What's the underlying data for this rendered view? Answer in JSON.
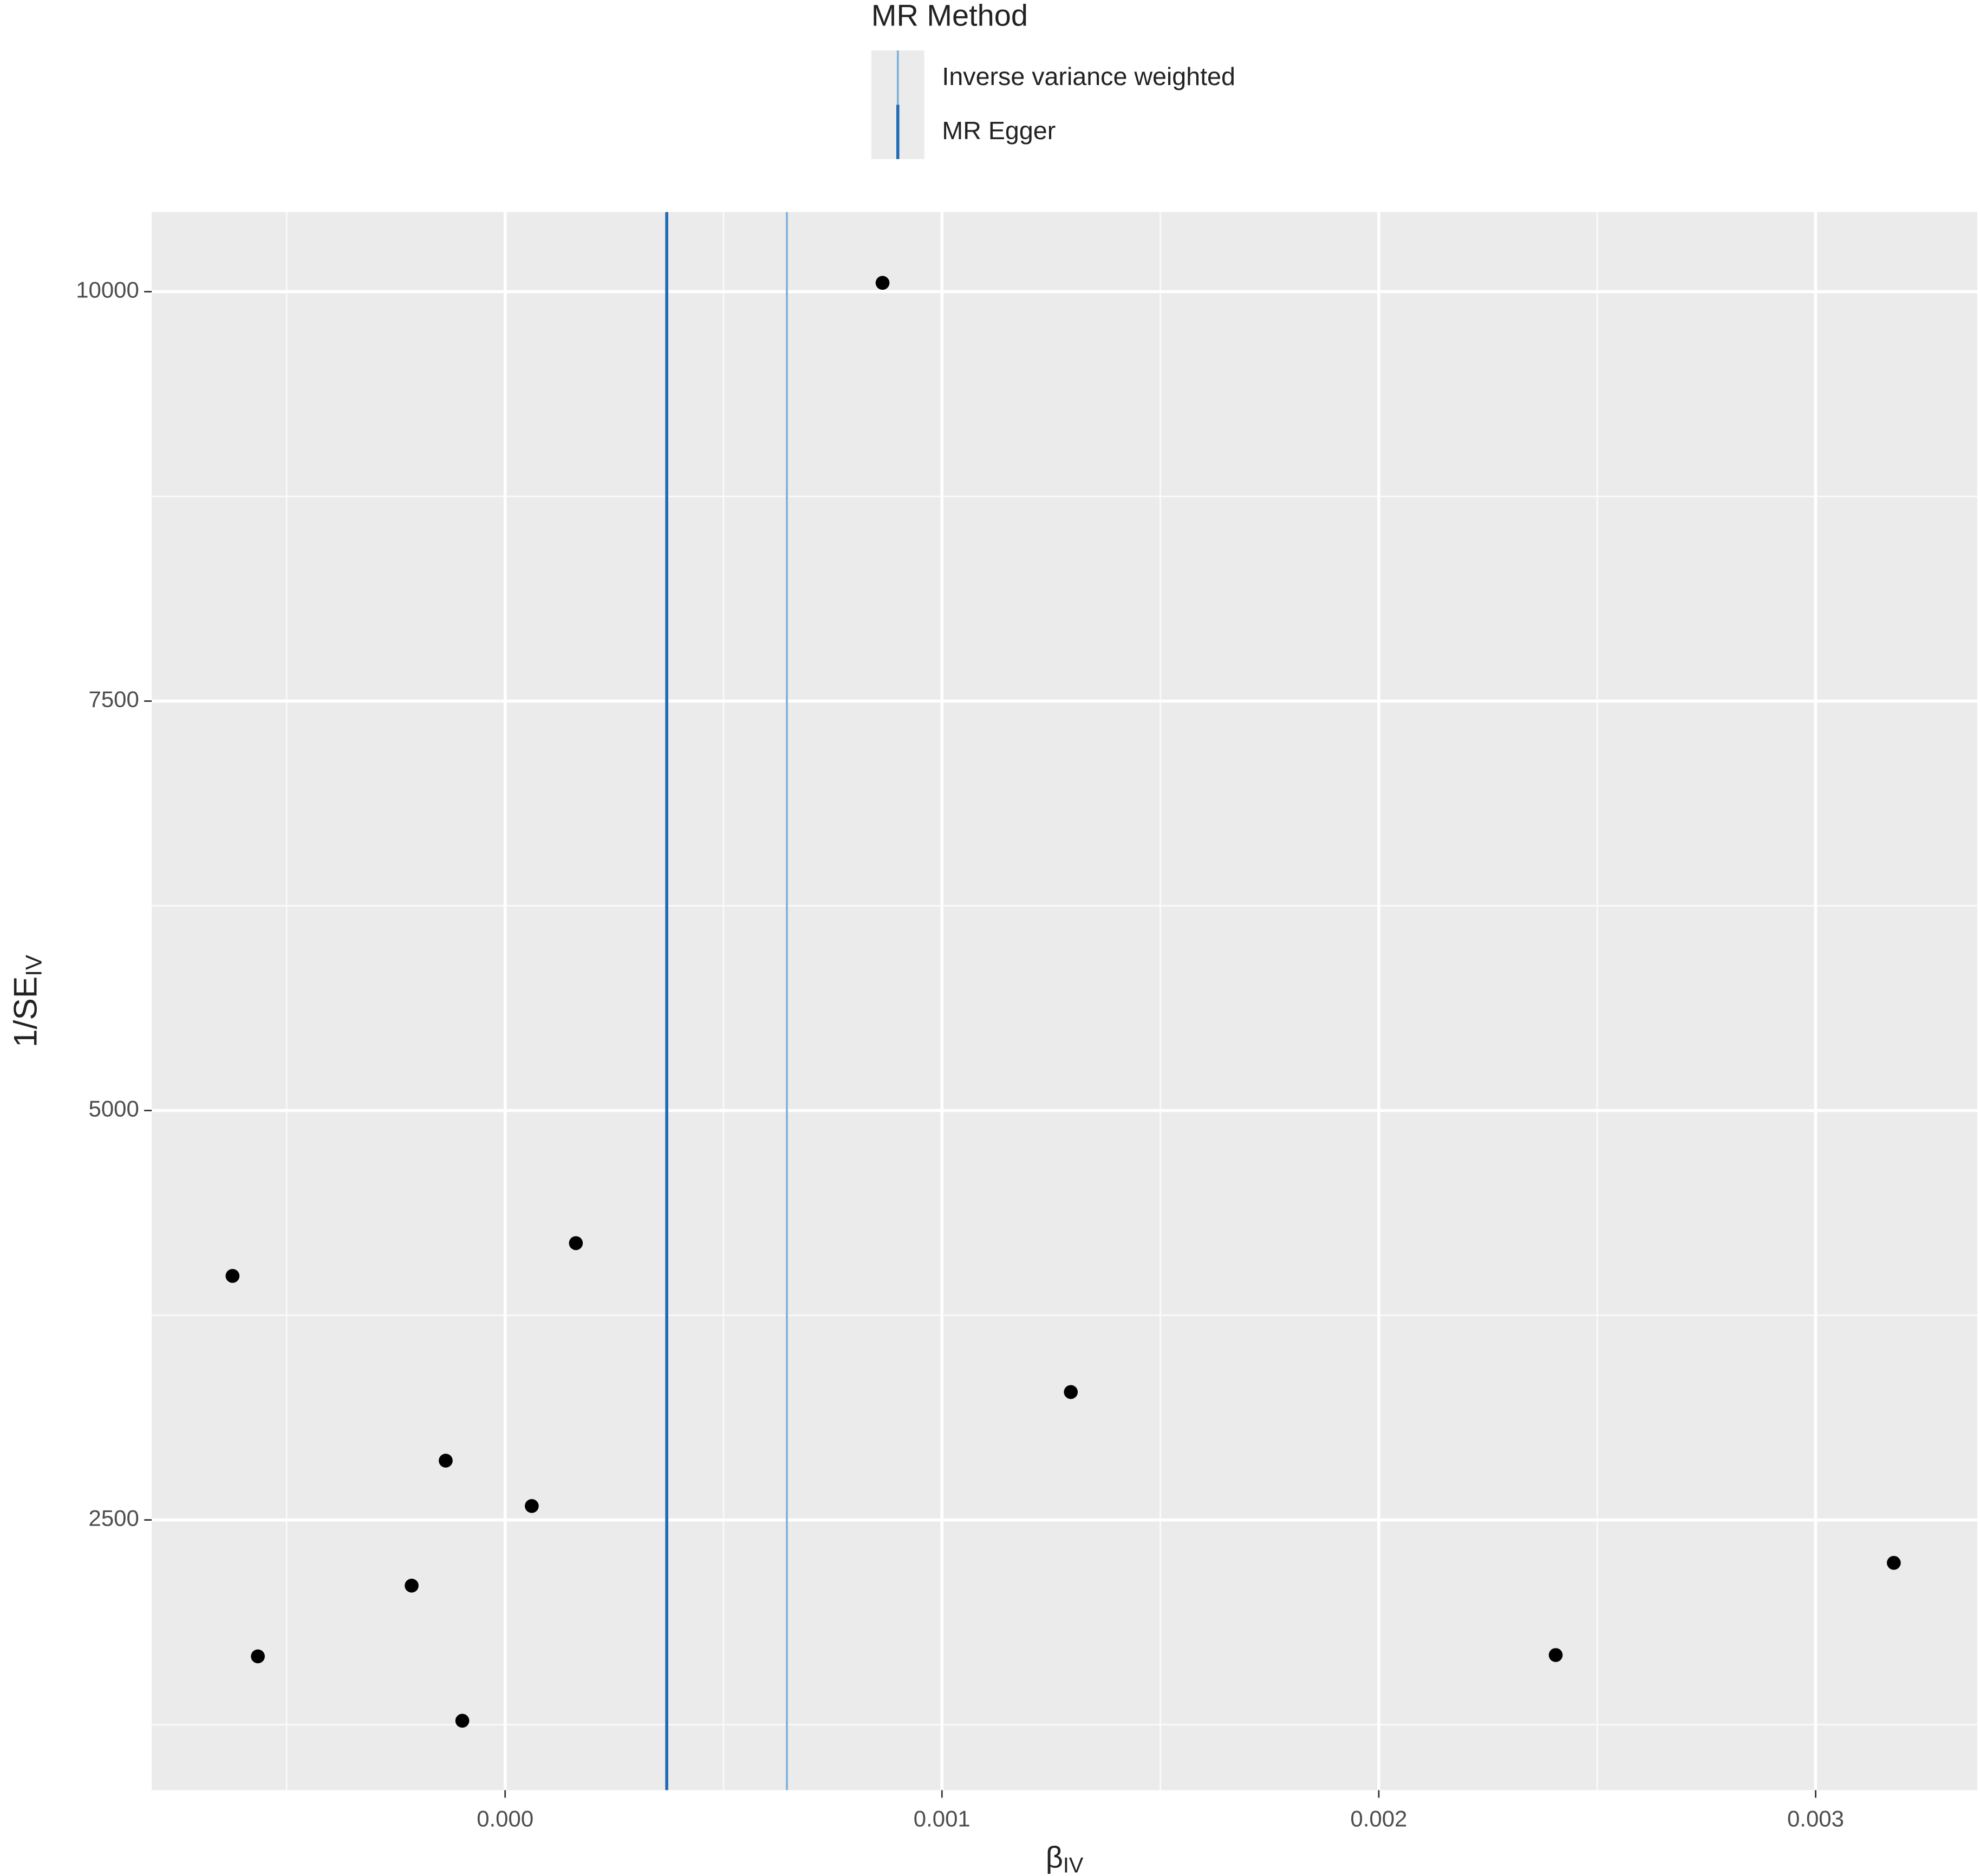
{
  "chart_data": {
    "type": "scatter",
    "x_label": "β",
    "x_label_sub": "IV",
    "y_label": "1/SE",
    "y_label_sub": "IV",
    "legend_title": "MR Method",
    "x": [
      0.000864,
      -0.000624,
      0.000162,
      0.001295,
      -0.000136,
      6.1e-05,
      -0.000214,
      0.003179,
      -0.000566,
      0.002405,
      -9.8e-05
    ],
    "y": [
      10054,
      3990,
      4190,
      3281,
      2862,
      2585,
      2099,
      2238,
      1667,
      1675,
      1274
    ],
    "point_color": "#000000",
    "series": [
      {
        "name": "Inverse variance weighted",
        "color": "#7fb1db",
        "value": 0.000645
      },
      {
        "name": "MR Egger",
        "color": "#1f6bb5",
        "value": 0.00037
      }
    ],
    "xlim": [
      -0.000809,
      0.00337
    ],
    "ylim": [
      850,
      10486
    ],
    "xticks": [
      {
        "value": 0,
        "label": "0.000"
      },
      {
        "value": 0.001,
        "label": "0.001"
      },
      {
        "value": 0.002,
        "label": "0.002"
      },
      {
        "value": 0.003,
        "label": "0.003"
      }
    ],
    "yticks": [
      2500,
      5000,
      7500,
      10000
    ],
    "minor_grid": {
      "x": [
        -0.0005,
        0.0005,
        0.0015,
        0.0025
      ],
      "y": [
        1250,
        3750,
        6250,
        8750
      ]
    },
    "grid": true
  }
}
